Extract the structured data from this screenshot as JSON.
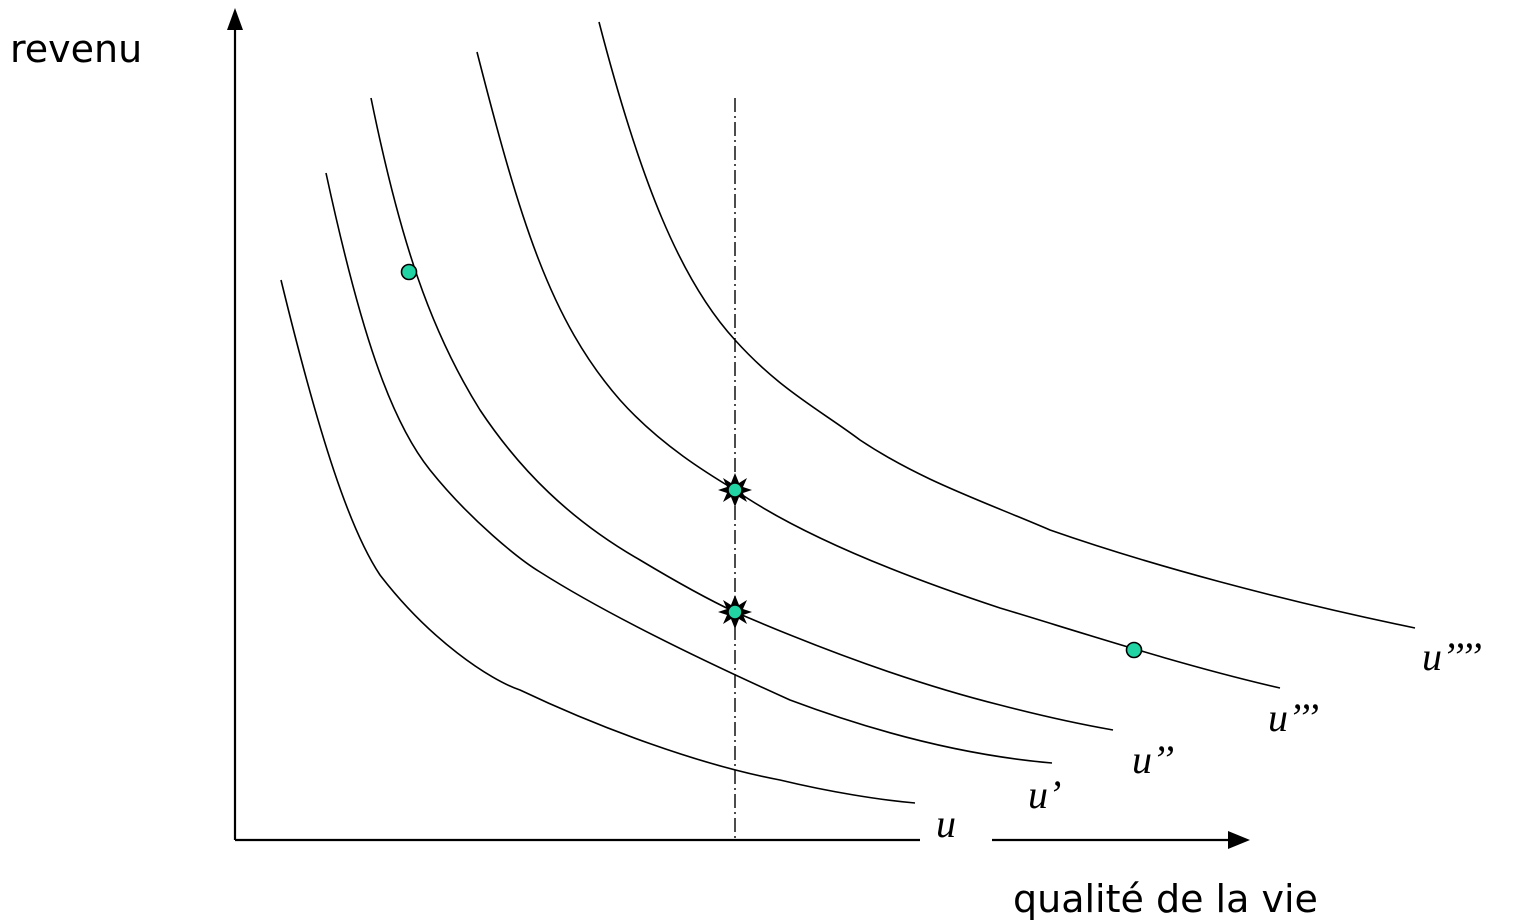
{
  "axes": {
    "y_label": "revenu",
    "x_label": "qualité de la vie"
  },
  "curves": [
    {
      "id": "u",
      "label": "u"
    },
    {
      "id": "u1",
      "label": "u’"
    },
    {
      "id": "u2",
      "label": "u’’"
    },
    {
      "id": "u3",
      "label": "u’’’"
    },
    {
      "id": "u4",
      "label": "u’’’’"
    }
  ],
  "colors": {
    "marker_fill": "#22d3a4",
    "line": "#000000",
    "background": "#ffffff"
  },
  "markers": {
    "plain_points": 2,
    "highlighted_points": 2
  }
}
